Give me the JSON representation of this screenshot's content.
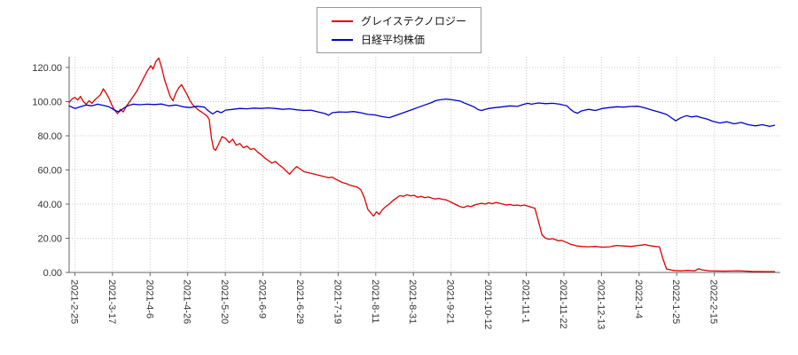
{
  "chart_data": {
    "type": "line",
    "title": "",
    "xlabel": "",
    "ylabel": "",
    "grid": true,
    "legend_position": "top-center",
    "x_axis": {
      "labels": [
        "2021-2-25",
        "2021-3-17",
        "2021-4-6",
        "2021-4-26",
        "2021-5-20",
        "2021-6-9",
        "2021-6-29",
        "2021-7-19",
        "2021-8-11",
        "2021-8-31",
        "2021-9-21",
        "2021-10-12",
        "2021-11-1",
        "2021-11-22",
        "2021-12-13",
        "2022-1-4",
        "2022-1-25",
        "2022-2-15"
      ],
      "first_tick_fraction": 0.008,
      "tick_step_fraction": 0.0529
    },
    "y_axis": {
      "tick_values": [
        0,
        20,
        40,
        60,
        80,
        100,
        120
      ],
      "tick_labels": [
        "0.00",
        "20.00",
        "40.00",
        "60.00",
        "80.00",
        "100.00",
        "120.00"
      ],
      "range": [
        0,
        130
      ]
    },
    "series": [
      {
        "name": "グレイステクノロジー",
        "color": "#dd0000",
        "points": [
          [
            0.0,
            99.5
          ],
          [
            0.004,
            101.5
          ],
          [
            0.008,
            102.5
          ],
          [
            0.012,
            101
          ],
          [
            0.016,
            103
          ],
          [
            0.02,
            100
          ],
          [
            0.024,
            98.5
          ],
          [
            0.028,
            100.5
          ],
          [
            0.032,
            99
          ],
          [
            0.036,
            101
          ],
          [
            0.04,
            102.5
          ],
          [
            0.044,
            104
          ],
          [
            0.048,
            107.5
          ],
          [
            0.052,
            105
          ],
          [
            0.056,
            102
          ],
          [
            0.06,
            98
          ],
          [
            0.064,
            95
          ],
          [
            0.068,
            93
          ],
          [
            0.072,
            95.5
          ],
          [
            0.076,
            94
          ],
          [
            0.08,
            97
          ],
          [
            0.085,
            100
          ],
          [
            0.09,
            103
          ],
          [
            0.095,
            106
          ],
          [
            0.1,
            110
          ],
          [
            0.105,
            114
          ],
          [
            0.11,
            118
          ],
          [
            0.115,
            121
          ],
          [
            0.118,
            119
          ],
          [
            0.122,
            123.5
          ],
          [
            0.126,
            125.5
          ],
          [
            0.13,
            120
          ],
          [
            0.134,
            113
          ],
          [
            0.138,
            108
          ],
          [
            0.142,
            103
          ],
          [
            0.146,
            100.5
          ],
          [
            0.15,
            105
          ],
          [
            0.154,
            108
          ],
          [
            0.158,
            110
          ],
          [
            0.162,
            107
          ],
          [
            0.166,
            104
          ],
          [
            0.17,
            100.5
          ],
          [
            0.174,
            98
          ],
          [
            0.178,
            96.5
          ],
          [
            0.182,
            95
          ],
          [
            0.186,
            94
          ],
          [
            0.19,
            92.8
          ],
          [
            0.194,
            91.5
          ],
          [
            0.197,
            89.5
          ],
          [
            0.2,
            79
          ],
          [
            0.203,
            72.5
          ],
          [
            0.206,
            71.5
          ],
          [
            0.21,
            75
          ],
          [
            0.215,
            79.5
          ],
          [
            0.22,
            78.5
          ],
          [
            0.225,
            76
          ],
          [
            0.23,
            78
          ],
          [
            0.235,
            74.5
          ],
          [
            0.24,
            75.5
          ],
          [
            0.245,
            73
          ],
          [
            0.25,
            74
          ],
          [
            0.255,
            72
          ],
          [
            0.26,
            72.5
          ],
          [
            0.265,
            70.5
          ],
          [
            0.27,
            69
          ],
          [
            0.275,
            67
          ],
          [
            0.28,
            65.5
          ],
          [
            0.285,
            64
          ],
          [
            0.29,
            65
          ],
          [
            0.295,
            63
          ],
          [
            0.3,
            61.5
          ],
          [
            0.305,
            59.5
          ],
          [
            0.31,
            57.5
          ],
          [
            0.315,
            60
          ],
          [
            0.32,
            62
          ],
          [
            0.325,
            60.5
          ],
          [
            0.33,
            59
          ],
          [
            0.335,
            58.5
          ],
          [
            0.34,
            58
          ],
          [
            0.345,
            57.5
          ],
          [
            0.35,
            57
          ],
          [
            0.355,
            56.5
          ],
          [
            0.36,
            56
          ],
          [
            0.365,
            55.5
          ],
          [
            0.37,
            55.8
          ],
          [
            0.375,
            54.5
          ],
          [
            0.38,
            53.5
          ],
          [
            0.385,
            52.5
          ],
          [
            0.39,
            52
          ],
          [
            0.395,
            51
          ],
          [
            0.4,
            50.5
          ],
          [
            0.405,
            50
          ],
          [
            0.41,
            48.5
          ],
          [
            0.415,
            44
          ],
          [
            0.42,
            37
          ],
          [
            0.425,
            34.5
          ],
          [
            0.428,
            33
          ],
          [
            0.432,
            35.5
          ],
          [
            0.436,
            34
          ],
          [
            0.44,
            36.5
          ],
          [
            0.445,
            38.5
          ],
          [
            0.45,
            40
          ],
          [
            0.455,
            42
          ],
          [
            0.46,
            43.5
          ],
          [
            0.465,
            45
          ],
          [
            0.47,
            44.5
          ],
          [
            0.475,
            45.5
          ],
          [
            0.48,
            44.8
          ],
          [
            0.485,
            45.2
          ],
          [
            0.49,
            44
          ],
          [
            0.495,
            44.5
          ],
          [
            0.5,
            43.8
          ],
          [
            0.505,
            44.2
          ],
          [
            0.51,
            43.5
          ],
          [
            0.515,
            43
          ],
          [
            0.52,
            43.4
          ],
          [
            0.525,
            42.8
          ],
          [
            0.53,
            42.5
          ],
          [
            0.535,
            41.5
          ],
          [
            0.54,
            40.5
          ],
          [
            0.545,
            39.5
          ],
          [
            0.55,
            38.5
          ],
          [
            0.555,
            38
          ],
          [
            0.56,
            39
          ],
          [
            0.565,
            38.5
          ],
          [
            0.57,
            39.5
          ],
          [
            0.575,
            40
          ],
          [
            0.58,
            40.5
          ],
          [
            0.585,
            40
          ],
          [
            0.59,
            40.8
          ],
          [
            0.595,
            40.2
          ],
          [
            0.6,
            41
          ],
          [
            0.605,
            40.5
          ],
          [
            0.61,
            40
          ],
          [
            0.615,
            39.5
          ],
          [
            0.62,
            39.8
          ],
          [
            0.625,
            39.2
          ],
          [
            0.63,
            39.5
          ],
          [
            0.635,
            39
          ],
          [
            0.64,
            39.5
          ],
          [
            0.645,
            38.8
          ],
          [
            0.65,
            38.2
          ],
          [
            0.655,
            37.5
          ],
          [
            0.66,
            30
          ],
          [
            0.665,
            22
          ],
          [
            0.67,
            20
          ],
          [
            0.675,
            19.5
          ],
          [
            0.68,
            19.8
          ],
          [
            0.685,
            19
          ],
          [
            0.688,
            18.5
          ],
          [
            0.692,
            18.8
          ],
          [
            0.7,
            17.5
          ],
          [
            0.705,
            16.5
          ],
          [
            0.71,
            16
          ],
          [
            0.715,
            15.5
          ],
          [
            0.72,
            15.2
          ],
          [
            0.73,
            15
          ],
          [
            0.74,
            15.2
          ],
          [
            0.75,
            14.8
          ],
          [
            0.76,
            15
          ],
          [
            0.765,
            15.5
          ],
          [
            0.77,
            15.8
          ],
          [
            0.78,
            15.5
          ],
          [
            0.79,
            15.2
          ],
          [
            0.795,
            15.5
          ],
          [
            0.8,
            15.8
          ],
          [
            0.805,
            16
          ],
          [
            0.81,
            16.3
          ],
          [
            0.815,
            15.8
          ],
          [
            0.82,
            15.5
          ],
          [
            0.825,
            15.2
          ],
          [
            0.83,
            15
          ],
          [
            0.835,
            8
          ],
          [
            0.84,
            2
          ],
          [
            0.85,
            1.2
          ],
          [
            0.86,
            1
          ],
          [
            0.87,
            1.2
          ],
          [
            0.88,
            1
          ],
          [
            0.885,
            2.2
          ],
          [
            0.89,
            1.5
          ],
          [
            0.9,
            1
          ],
          [
            0.92,
            0.8
          ],
          [
            0.94,
            1
          ],
          [
            0.96,
            0.6
          ],
          [
            0.98,
            0.5
          ],
          [
            0.992,
            0.5
          ]
        ]
      },
      {
        "name": "日経平均株価",
        "color": "#0000cc",
        "points": [
          [
            0.0,
            97.5
          ],
          [
            0.008,
            96
          ],
          [
            0.016,
            97
          ],
          [
            0.024,
            98
          ],
          [
            0.032,
            97.5
          ],
          [
            0.04,
            98.5
          ],
          [
            0.048,
            97.8
          ],
          [
            0.056,
            97
          ],
          [
            0.064,
            95
          ],
          [
            0.07,
            94
          ],
          [
            0.076,
            96
          ],
          [
            0.082,
            97.5
          ],
          [
            0.09,
            98.5
          ],
          [
            0.1,
            98.2
          ],
          [
            0.11,
            98.5
          ],
          [
            0.12,
            98.3
          ],
          [
            0.13,
            98.6
          ],
          [
            0.14,
            97.5
          ],
          [
            0.15,
            98
          ],
          [
            0.16,
            97
          ],
          [
            0.17,
            96.5
          ],
          [
            0.18,
            97.3
          ],
          [
            0.19,
            96.8
          ],
          [
            0.196,
            94.5
          ],
          [
            0.202,
            92.8
          ],
          [
            0.208,
            94.5
          ],
          [
            0.214,
            93.5
          ],
          [
            0.22,
            95
          ],
          [
            0.23,
            95.5
          ],
          [
            0.24,
            96
          ],
          [
            0.25,
            95.8
          ],
          [
            0.26,
            96.2
          ],
          [
            0.27,
            96
          ],
          [
            0.28,
            96.3
          ],
          [
            0.29,
            96
          ],
          [
            0.3,
            95.5
          ],
          [
            0.31,
            95.8
          ],
          [
            0.32,
            95.2
          ],
          [
            0.33,
            94.8
          ],
          [
            0.34,
            95
          ],
          [
            0.35,
            94
          ],
          [
            0.36,
            93
          ],
          [
            0.365,
            92
          ],
          [
            0.37,
            93.5
          ],
          [
            0.38,
            94
          ],
          [
            0.39,
            93.8
          ],
          [
            0.4,
            94.2
          ],
          [
            0.41,
            93.5
          ],
          [
            0.42,
            92.5
          ],
          [
            0.43,
            92.2
          ],
          [
            0.44,
            91.2
          ],
          [
            0.45,
            90.6
          ],
          [
            0.46,
            92
          ],
          [
            0.47,
            93.5
          ],
          [
            0.48,
            95
          ],
          [
            0.49,
            96.5
          ],
          [
            0.5,
            98
          ],
          [
            0.51,
            99.5
          ],
          [
            0.515,
            100.5
          ],
          [
            0.52,
            101
          ],
          [
            0.53,
            101.5
          ],
          [
            0.54,
            101
          ],
          [
            0.55,
            100.3
          ],
          [
            0.555,
            99.3
          ],
          [
            0.56,
            98.5
          ],
          [
            0.57,
            96.8
          ],
          [
            0.575,
            95.3
          ],
          [
            0.58,
            94.8
          ],
          [
            0.585,
            95.5
          ],
          [
            0.59,
            96
          ],
          [
            0.6,
            96.5
          ],
          [
            0.61,
            97
          ],
          [
            0.62,
            97.5
          ],
          [
            0.63,
            97.2
          ],
          [
            0.64,
            98.5
          ],
          [
            0.645,
            99
          ],
          [
            0.65,
            98.5
          ],
          [
            0.66,
            99.2
          ],
          [
            0.67,
            98.8
          ],
          [
            0.68,
            99
          ],
          [
            0.69,
            98.5
          ],
          [
            0.7,
            97.5
          ],
          [
            0.705,
            95.5
          ],
          [
            0.71,
            94
          ],
          [
            0.715,
            93.2
          ],
          [
            0.72,
            94.5
          ],
          [
            0.73,
            95.5
          ],
          [
            0.74,
            94.8
          ],
          [
            0.75,
            96
          ],
          [
            0.76,
            96.5
          ],
          [
            0.77,
            97
          ],
          [
            0.78,
            96.8
          ],
          [
            0.79,
            97.2
          ],
          [
            0.8,
            97.3
          ],
          [
            0.81,
            96.3
          ],
          [
            0.82,
            95
          ],
          [
            0.83,
            93.8
          ],
          [
            0.84,
            92.5
          ],
          [
            0.848,
            90.2
          ],
          [
            0.853,
            88.8
          ],
          [
            0.86,
            90.5
          ],
          [
            0.868,
            91.8
          ],
          [
            0.875,
            91
          ],
          [
            0.882,
            91.5
          ],
          [
            0.89,
            90.5
          ],
          [
            0.897,
            89.8
          ],
          [
            0.905,
            88.5
          ],
          [
            0.915,
            87.5
          ],
          [
            0.925,
            88.2
          ],
          [
            0.935,
            87
          ],
          [
            0.945,
            87.8
          ],
          [
            0.955,
            86.5
          ],
          [
            0.965,
            85.8
          ],
          [
            0.975,
            86.5
          ],
          [
            0.985,
            85.5
          ],
          [
            0.992,
            86.2
          ]
        ]
      }
    ],
    "colors": {
      "grid": "#c9c9c9",
      "axis": "#666666",
      "label": "#333333"
    }
  }
}
